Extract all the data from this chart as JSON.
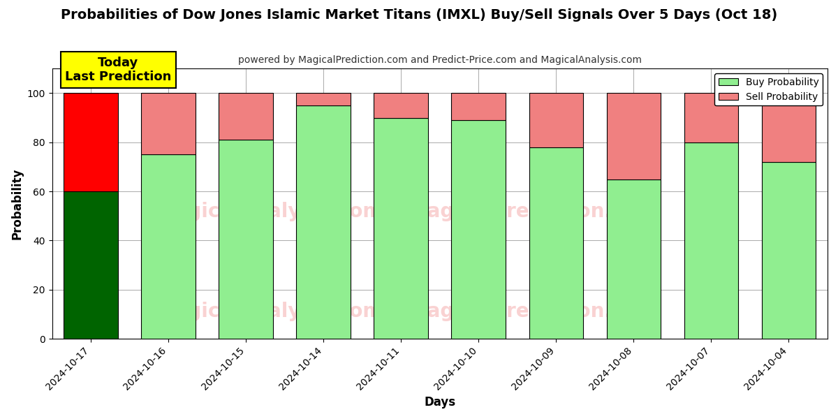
{
  "title": "Probabilities of Dow Jones Islamic Market Titans (IMXL) Buy/Sell Signals Over 5 Days (Oct 18)",
  "subtitle": "powered by MagicalPrediction.com and Predict-Price.com and MagicalAnalysis.com",
  "xlabel": "Days",
  "ylabel": "Probability",
  "dates": [
    "2024-10-17",
    "2024-10-16",
    "2024-10-15",
    "2024-10-14",
    "2024-10-11",
    "2024-10-10",
    "2024-10-09",
    "2024-10-08",
    "2024-10-07",
    "2024-10-04"
  ],
  "buy_values": [
    60,
    75,
    81,
    95,
    90,
    89,
    78,
    65,
    80,
    72
  ],
  "sell_values": [
    40,
    25,
    19,
    5,
    10,
    11,
    22,
    35,
    20,
    28
  ],
  "today_bar_buy_color": "#006400",
  "today_bar_sell_color": "#FF0000",
  "normal_bar_buy_color": "#90EE90",
  "normal_bar_sell_color": "#F08080",
  "today_label_bg": "#FFFF00",
  "today_label_text": "Today\nLast Prediction",
  "legend_buy_label": "Buy Probability",
  "legend_sell_label": "Sell Probability",
  "ylim": [
    0,
    110
  ],
  "dashed_line_y": 110,
  "bar_edge_color": "#000000",
  "background_color": "#ffffff",
  "grid_color": "#aaaaaa"
}
